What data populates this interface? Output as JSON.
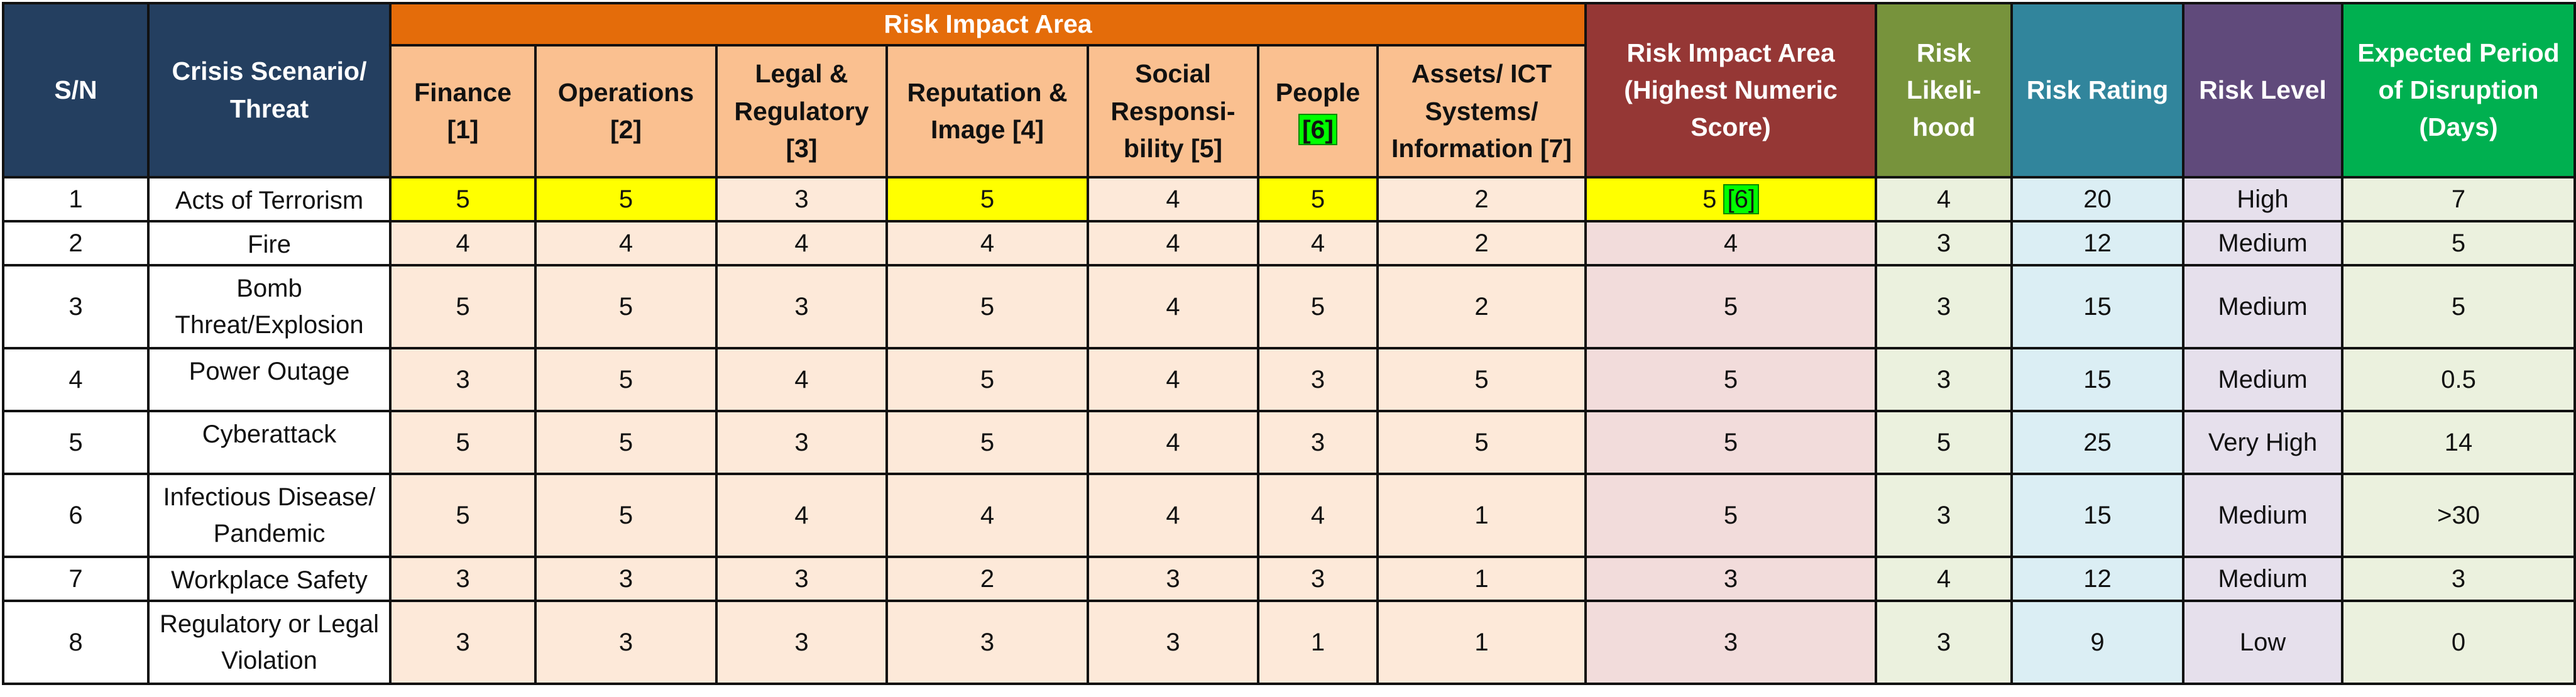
{
  "header": {
    "sn": "S/N",
    "scenario": "Crisis Scenario/ Threat",
    "risk_impact_area": "Risk Impact Area",
    "impact_columns": [
      {
        "label": "Finance [1]"
      },
      {
        "label": "Operations [2]"
      },
      {
        "label": "Legal & Regulatory [3]"
      },
      {
        "label": "Reputation & Image [4]"
      },
      {
        "label": "Social Responsi-bility [5]"
      },
      {
        "label": "People",
        "label_hl": "[6]"
      },
      {
        "label": "Assets/ ICT Systems/ Information [7]"
      }
    ],
    "highest": "Risk Impact Area (Highest Numeric Score)",
    "likelihood": "Risk Likeli-hood",
    "rating": "Risk Rating",
    "level": "Risk Level",
    "period": "Expected Period of Disruption (Days)"
  },
  "rows": [
    {
      "sn": "1",
      "scenario": "Acts of Terrorism",
      "impacts": [
        "5",
        "5",
        "3",
        "5",
        "4",
        "5",
        "2"
      ],
      "highest": "5",
      "highest_tag": "[6]",
      "likelihood": "4",
      "rating": "20",
      "level": "High",
      "period": "7"
    },
    {
      "sn": "2",
      "scenario": "Fire",
      "impacts": [
        "4",
        "4",
        "4",
        "4",
        "4",
        "4",
        "2"
      ],
      "highest": "4",
      "likelihood": "3",
      "rating": "12",
      "level": "Medium",
      "period": "5"
    },
    {
      "sn": "3",
      "scenario": "Bomb Threat/Explosion",
      "impacts": [
        "5",
        "5",
        "3",
        "5",
        "4",
        "5",
        "2"
      ],
      "highest": "5",
      "likelihood": "3",
      "rating": "15",
      "level": "Medium",
      "period": "5"
    },
    {
      "sn": "4",
      "scenario": "Power Outage",
      "impacts": [
        "3",
        "5",
        "4",
        "5",
        "4",
        "3",
        "5"
      ],
      "highest": "5",
      "likelihood": "3",
      "rating": "15",
      "level": "Medium",
      "period": "0.5"
    },
    {
      "sn": "5",
      "scenario": "Cyberattack",
      "impacts": [
        "5",
        "5",
        "3",
        "5",
        "4",
        "3",
        "5"
      ],
      "highest": "5",
      "likelihood": "5",
      "rating": "25",
      "level": "Very High",
      "period": "14"
    },
    {
      "sn": "6",
      "scenario": "Infectious Disease/ Pandemic",
      "impacts": [
        "5",
        "5",
        "4",
        "4",
        "4",
        "4",
        "1"
      ],
      "highest": "5",
      "likelihood": "3",
      "rating": "15",
      "level": "Medium",
      "period": ">30"
    },
    {
      "sn": "7",
      "scenario": "Workplace Safety",
      "impacts": [
        "3",
        "3",
        "3",
        "2",
        "3",
        "3",
        "1"
      ],
      "highest": "3",
      "likelihood": "4",
      "rating": "12",
      "level": "Medium",
      "period": "3"
    },
    {
      "sn": "8",
      "scenario": "Regulatory or Legal Violation",
      "impacts": [
        "3",
        "3",
        "3",
        "3",
        "3",
        "1",
        "1"
      ],
      "highest": "3",
      "likelihood": "3",
      "rating": "9",
      "level": "Low",
      "period": "0"
    }
  ],
  "highlights": {
    "row1_yellow_impact_indices": [
      0,
      1,
      3,
      5
    ]
  },
  "colors": {
    "navy": "#243F60",
    "orange": "#E46C0A",
    "peach_header": "#FAC090",
    "peach_cell": "#FDE9D9",
    "dark_red": "#953735",
    "pink_cell": "#F2DCDB",
    "olive": "#77933C",
    "olive_cell": "#EBF1DE",
    "teal": "#31859C",
    "teal_cell": "#DBEEF4",
    "purple": "#604A7B",
    "purple_cell": "#E6E0EC",
    "green": "#00B050",
    "yellow": "#FFFF00",
    "highlight_green": "#00FF00"
  }
}
